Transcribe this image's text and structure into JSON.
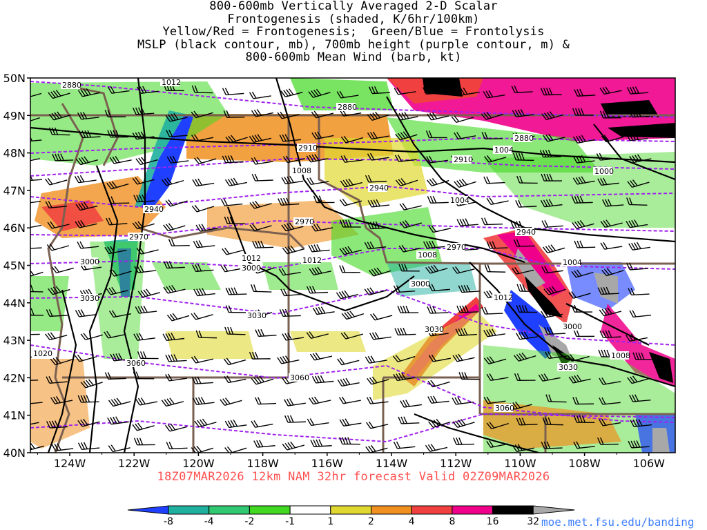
{
  "title_lines": [
    "800-600mb Vertically Averaged 2-D Scalar",
    "Frontogenesis (shaded, K/6hr/100km)",
    "Yellow/Red = Frontogenesis;  Green/Blue = Frontolysis",
    "MSLP (black contour, mb), 700mb height (purple contour, m) &",
    "800-600mb Mean Wind (barb, kt)"
  ],
  "lat_labels": [
    "50N",
    "49N",
    "48N",
    "47N",
    "46N",
    "45N",
    "44N",
    "43N",
    "42N",
    "41N",
    "40N"
  ],
  "lon_labels": [
    "124W",
    "122W",
    "120W",
    "118W",
    "116W",
    "114W",
    "112W",
    "110W",
    "108W",
    "106W"
  ],
  "timestamp": "18Z07MAR2026 12km NAM 32hr forecast Valid 02Z09MAR2026",
  "credit": "moe.met.fsu.edu/banding",
  "colorbar": {
    "ticks": [
      "-8",
      "-4",
      "-2",
      "-1",
      "1",
      "2",
      "4",
      "8",
      "16",
      "32"
    ],
    "colors": [
      "#2040ff",
      "#20b0a0",
      "#30c870",
      "#40d820",
      "#ffffff",
      "#e0d830",
      "#f09020",
      "#f04040",
      "#f0008a",
      "#000000",
      "#a8a8a8"
    ]
  },
  "height_labels": [
    "2880",
    "2880",
    "2880",
    "2910",
    "2910",
    "2940",
    "2940",
    "2940",
    "2970",
    "2970",
    "2970",
    "3000",
    "3000",
    "3000",
    "3000",
    "3030",
    "3030",
    "3030",
    "3030",
    "3060",
    "3060",
    "3060"
  ],
  "pressure_labels": [
    "1012",
    "1008",
    "1004",
    "1004",
    "1000",
    "1004",
    "1008",
    "1012",
    "1012",
    "1012",
    "1008",
    "1020"
  ],
  "colors": {
    "height_contour": "#a020f0",
    "pressure_contour": "#000000",
    "state_border": "#7a6050",
    "timestamp": "#ff5050",
    "credit": "#4080ff"
  }
}
